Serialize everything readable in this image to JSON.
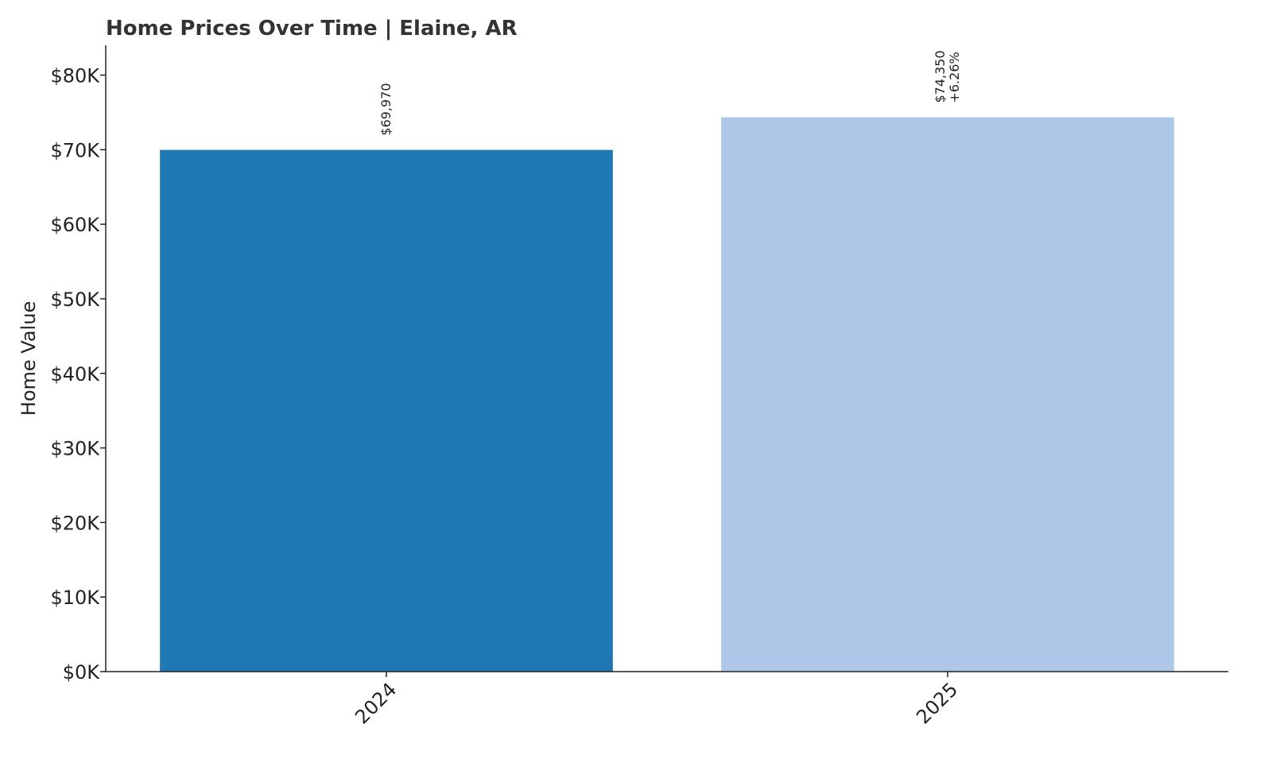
{
  "chart_data": {
    "type": "bar",
    "title": "Home Prices Over Time | Elaine, AR",
    "y_label": "Home Value",
    "categories": [
      "2024",
      "2025"
    ],
    "values": [
      69970,
      74350
    ],
    "value_labels": [
      [
        "$69,970"
      ],
      [
        "$74,350",
        "+6.26%"
      ]
    ],
    "colors": [
      "#1f77b4",
      "#aec7e8"
    ],
    "ylim": [
      0,
      84000
    ],
    "yticks": [
      {
        "value": 0,
        "label": "$0K"
      },
      {
        "value": 10000,
        "label": "$10K"
      },
      {
        "value": 20000,
        "label": "$20K"
      },
      {
        "value": 30000,
        "label": "$30K"
      },
      {
        "value": 40000,
        "label": "$40K"
      },
      {
        "value": 50000,
        "label": "$50K"
      },
      {
        "value": 60000,
        "label": "$60K"
      },
      {
        "value": 70000,
        "label": "$70K"
      },
      {
        "value": 80000,
        "label": "$80K"
      }
    ],
    "grid": false
  }
}
